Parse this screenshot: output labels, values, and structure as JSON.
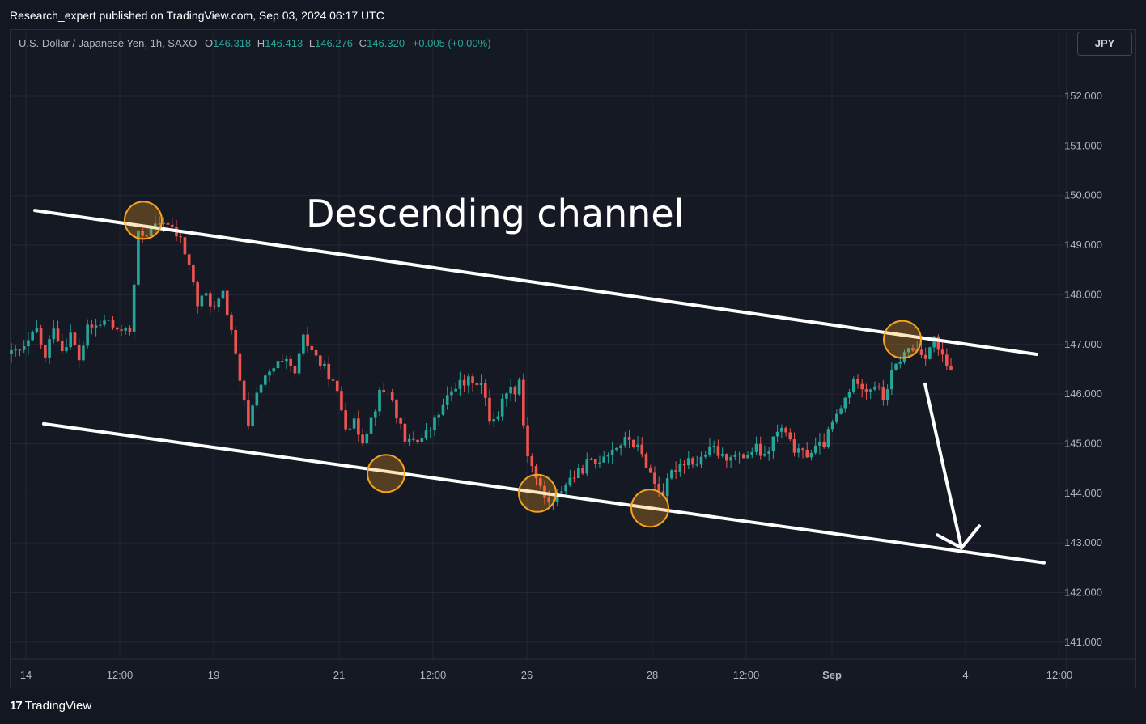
{
  "publisher_line": "Research_expert published on TradingView.com, Sep 03, 2024 06:17 UTC",
  "legend": {
    "symbol": "U.S. Dollar / Japanese Yen, 1h, SAXO",
    "open_label": "O",
    "open": "146.318",
    "high_label": "H",
    "high": "146.413",
    "low_label": "L",
    "low": "146.276",
    "close_label": "C",
    "close": "146.320",
    "change": "+0.005 (+0.00%)"
  },
  "currency_button": "JPY",
  "footer_logo": "TradingView",
  "colors": {
    "up": "#26a69a",
    "down": "#ef5350",
    "background": "#131722",
    "annotation": "#ffffff",
    "marker": "#f7a21b"
  },
  "chart_data": {
    "type": "candlestick",
    "y_ticks": [
      "152.000",
      "151.000",
      "150.000",
      "149.000",
      "148.000",
      "147.000",
      "146.000",
      "145.000",
      "144.000",
      "143.000",
      "142.000",
      "141.000"
    ],
    "x_ticks": [
      "14",
      "12:00",
      "19",
      "21",
      "12:00",
      "26",
      "28",
      "12:00",
      "Sep",
      "4",
      "12:00"
    ],
    "ylim": [
      140.7,
      153.3
    ],
    "grid": true,
    "annotation_text": "Descending channel",
    "price_path": [
      [
        0,
        146.8
      ],
      [
        3,
        146.9
      ],
      [
        6,
        147.3
      ],
      [
        8,
        146.7
      ],
      [
        10,
        147.4
      ],
      [
        12,
        146.9
      ],
      [
        14,
        147.2
      ],
      [
        16,
        146.7
      ],
      [
        18,
        147.3
      ],
      [
        21,
        147.4
      ],
      [
        23,
        147.5
      ],
      [
        25,
        147.2
      ],
      [
        27,
        147.4
      ],
      [
        28,
        147.2
      ],
      [
        30,
        149.2
      ],
      [
        33,
        149.3
      ],
      [
        36,
        149.5
      ],
      [
        38,
        149.3
      ],
      [
        40,
        149.1
      ],
      [
        42,
        148.6
      ],
      [
        44,
        147.8
      ],
      [
        46,
        148.0
      ],
      [
        48,
        147.7
      ],
      [
        50,
        148.0
      ],
      [
        52,
        147.3
      ],
      [
        54,
        146.2
      ],
      [
        56,
        145.4
      ],
      [
        58,
        146.1
      ],
      [
        61,
        146.4
      ],
      [
        63,
        146.6
      ],
      [
        65,
        146.6
      ],
      [
        67,
        146.4
      ],
      [
        69,
        147.1
      ],
      [
        71,
        146.9
      ],
      [
        73,
        146.6
      ],
      [
        75,
        146.4
      ],
      [
        77,
        146.0
      ],
      [
        79,
        145.4
      ],
      [
        81,
        145.4
      ],
      [
        83,
        145.1
      ],
      [
        85,
        145.5
      ],
      [
        87,
        146.0
      ],
      [
        89,
        146.1
      ],
      [
        91,
        145.6
      ],
      [
        93,
        145.0
      ],
      [
        95,
        145.1
      ],
      [
        97,
        145.1
      ],
      [
        99,
        145.3
      ],
      [
        101,
        145.6
      ],
      [
        103,
        145.9
      ],
      [
        105,
        146.2
      ],
      [
        107,
        146.2
      ],
      [
        109,
        146.3
      ],
      [
        111,
        146.2
      ],
      [
        113,
        145.5
      ],
      [
        115,
        145.6
      ],
      [
        117,
        146.1
      ],
      [
        119,
        146.1
      ],
      [
        120,
        146.3
      ],
      [
        121,
        145.4
      ],
      [
        122,
        144.8
      ],
      [
        124,
        144.3
      ],
      [
        126,
        143.9
      ],
      [
        128,
        143.8
      ],
      [
        130,
        144.1
      ],
      [
        132,
        144.3
      ],
      [
        134,
        144.4
      ],
      [
        136,
        144.6
      ],
      [
        138,
        144.6
      ],
      [
        140,
        144.8
      ],
      [
        142,
        144.9
      ],
      [
        144,
        145.0
      ],
      [
        146,
        145.1
      ],
      [
        148,
        144.9
      ],
      [
        150,
        144.6
      ],
      [
        152,
        144.2
      ],
      [
        154,
        144.0
      ],
      [
        156,
        144.4
      ],
      [
        158,
        144.6
      ],
      [
        160,
        144.7
      ],
      [
        162,
        144.6
      ],
      [
        164,
        144.8
      ],
      [
        166,
        144.9
      ],
      [
        168,
        144.7
      ],
      [
        170,
        144.8
      ],
      [
        172,
        144.7
      ],
      [
        174,
        144.8
      ],
      [
        176,
        144.9
      ],
      [
        178,
        144.7
      ],
      [
        180,
        145.1
      ],
      [
        182,
        145.3
      ],
      [
        184,
        145.0
      ],
      [
        186,
        144.8
      ],
      [
        188,
        144.8
      ],
      [
        190,
        144.9
      ],
      [
        192,
        145.0
      ],
      [
        194,
        145.4
      ],
      [
        196,
        145.7
      ],
      [
        198,
        146.1
      ],
      [
        200,
        146.3
      ],
      [
        202,
        146.1
      ],
      [
        204,
        146.2
      ],
      [
        206,
        145.9
      ],
      [
        208,
        146.4
      ],
      [
        210,
        146.7
      ],
      [
        212,
        146.9
      ],
      [
        214,
        146.9
      ],
      [
        216,
        146.8
      ],
      [
        218,
        147.1
      ],
      [
        220,
        146.7
      ],
      [
        222,
        146.4
      ]
    ],
    "channel_upper": {
      "x": [
        "13 Aug",
        "3 Sep"
      ],
      "y": [
        149.7,
        146.8
      ]
    },
    "channel_lower": {
      "x": [
        "13 Aug",
        "4 Sep"
      ],
      "y": [
        145.4,
        142.6
      ]
    },
    "touch_points": [
      {
        "label": "Upper touch, 15 Aug",
        "price": 149.5
      },
      {
        "label": "Lower touch, 22 Aug",
        "price": 144.4
      },
      {
        "label": "Lower touch, 26 Aug",
        "price": 144.0
      },
      {
        "label": "Lower touch, 28 Aug",
        "price": 143.7
      },
      {
        "label": "Upper touch, 2 Sep",
        "price": 147.1
      }
    ],
    "projection_arrow": {
      "from_price": 146.2,
      "to_price": 142.9
    }
  }
}
